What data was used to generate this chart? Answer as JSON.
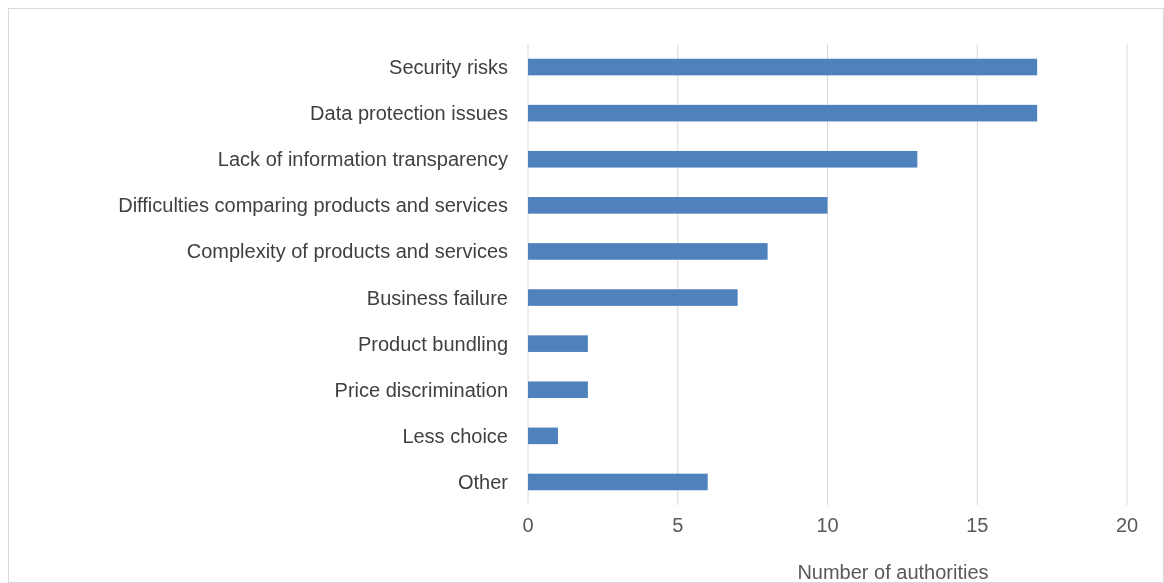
{
  "chart_data": {
    "type": "bar",
    "orientation": "horizontal",
    "xlabel": "Number of authorities",
    "categories": [
      "Security risks",
      "Data protection issues",
      "Lack of information transparency",
      "Difficulties comparing products and services",
      "Complexity of products and services",
      "Business failure",
      "Product bundling",
      "Price discrimination",
      "Less choice",
      "Other"
    ],
    "values": [
      17,
      17,
      13,
      10,
      8,
      7,
      2,
      2,
      1,
      6
    ],
    "color": "#4f81bd",
    "xlim": [
      0,
      20
    ],
    "xticks": [
      0,
      5,
      10,
      15,
      20
    ],
    "grid": "x"
  }
}
